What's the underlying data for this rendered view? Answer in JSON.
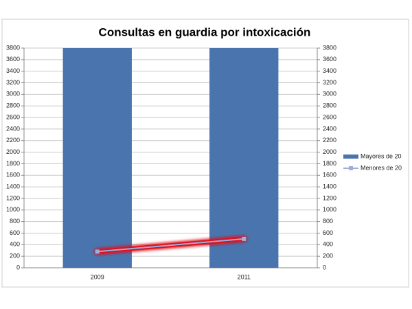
{
  "chart_data": {
    "type": "bar",
    "title": "Consultas en guardia por intoxicación",
    "categories": [
      "2009",
      "2011"
    ],
    "series": [
      {
        "name": "Mayores de 20",
        "type": "bar",
        "color": "#4a74ad",
        "values": [
          3800,
          3800
        ]
      },
      {
        "name": "Menores de 20",
        "type": "line",
        "color": "#9db0dd",
        "highlight": "#e0101a",
        "values": [
          280,
          500
        ]
      }
    ],
    "ylim": [
      0,
      3800
    ],
    "yticks": [
      0,
      200,
      400,
      600,
      800,
      1000,
      1200,
      1400,
      1600,
      1800,
      2000,
      2200,
      2400,
      2600,
      2800,
      3000,
      3200,
      3400,
      3600,
      3800
    ],
    "y2lim": [
      0,
      3800
    ],
    "y2ticks": [
      0,
      200,
      400,
      600,
      800,
      1000,
      1200,
      1400,
      1600,
      1800,
      2000,
      2200,
      2400,
      2600,
      2800,
      3000,
      3200,
      3400,
      3600,
      3800
    ],
    "grid": true,
    "legend": "right"
  }
}
